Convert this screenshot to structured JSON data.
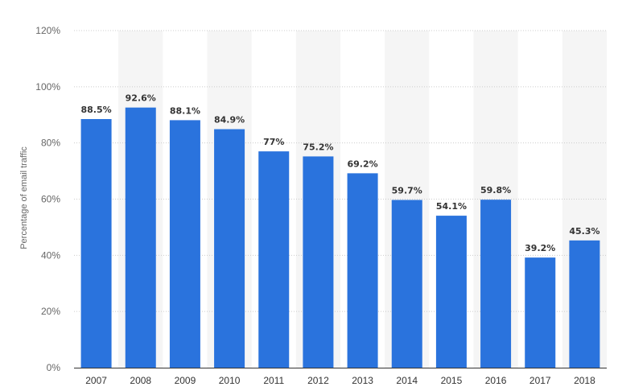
{
  "chart_data": {
    "type": "bar",
    "categories": [
      "2007",
      "2008",
      "2009",
      "2010",
      "2011",
      "2012",
      "2013",
      "2014",
      "2015",
      "2016",
      "2017",
      "2018"
    ],
    "values": [
      88.5,
      92.6,
      88.1,
      84.9,
      77,
      75.2,
      69.2,
      59.7,
      54.1,
      59.8,
      39.2,
      45.3
    ],
    "data_labels": [
      "88.5%",
      "92.6%",
      "88.1%",
      "84.9%",
      "77%",
      "75.2%",
      "69.2%",
      "59.7%",
      "54.1%",
      "59.8%",
      "39.2%",
      "45.3%"
    ],
    "title": "",
    "xlabel": "",
    "ylabel": "Percentage of email traffic",
    "ylim": [
      0,
      120
    ],
    "yticks": [
      0,
      20,
      40,
      60,
      80,
      100,
      120
    ],
    "ytick_labels": [
      "0%",
      "20%",
      "40%",
      "60%",
      "80%",
      "100%",
      "120%"
    ],
    "grid": true,
    "bar_color": "#2a73dd",
    "band_color": "#f5f5f5",
    "grid_color": "#cccccc"
  }
}
